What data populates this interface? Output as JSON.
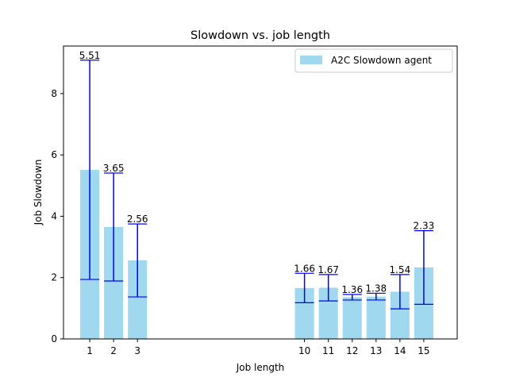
{
  "chart_data": {
    "type": "bar",
    "title": "Slowdown vs. job length",
    "xlabel": "Job length",
    "ylabel": "Job Slowdown",
    "ylim": [
      0,
      9.55
    ],
    "xlim": [
      -0.1,
      16.4
    ],
    "yticks": [
      0,
      2,
      4,
      6,
      8
    ],
    "grid": false,
    "legend_position": "top-right",
    "bar_color": "#87ceeb",
    "error_color": "#0000ff",
    "categories": [
      "1",
      "2",
      "3",
      "10",
      "11",
      "12",
      "13",
      "14",
      "15"
    ],
    "x": [
      1,
      2,
      3,
      10,
      11,
      12,
      13,
      14,
      15
    ],
    "series": [
      {
        "name": "A2C Slowdown agent",
        "values": [
          5.51,
          3.65,
          2.56,
          1.66,
          1.67,
          1.36,
          1.38,
          1.54,
          2.33
        ],
        "labels": [
          "5.51",
          "3.65",
          "2.56",
          "1.66",
          "1.67",
          "1.36",
          "1.38",
          "1.54",
          "2.33"
        ],
        "error_low": [
          1.94,
          1.89,
          1.37,
          1.18,
          1.24,
          1.27,
          1.27,
          0.98,
          1.13
        ],
        "error_high": [
          9.09,
          5.41,
          3.75,
          2.14,
          2.1,
          1.45,
          1.49,
          2.1,
          3.53
        ]
      }
    ]
  }
}
